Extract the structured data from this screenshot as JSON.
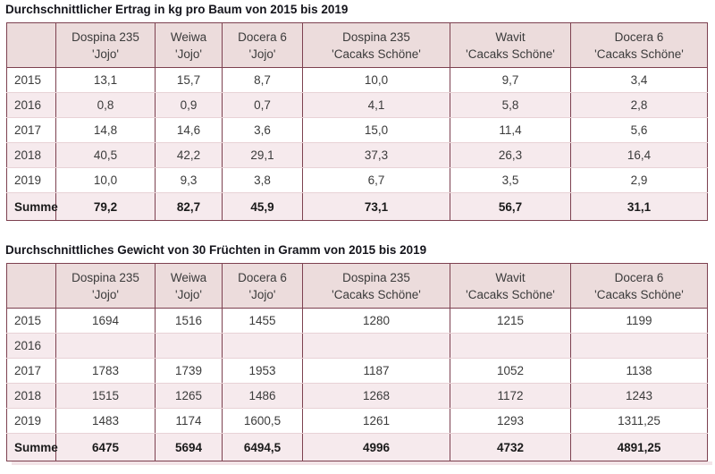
{
  "colors": {
    "border": "#7d4150",
    "header_bg": "#ecdcdc",
    "alt_row_bg": "#f6eaed",
    "separator": "#e8d2d6",
    "title_color": "#15151c",
    "text": "#3b3b3b",
    "sum_text": "#1a1a1a"
  },
  "chart_data": [
    {
      "type": "table",
      "title": "Durchschnittlicher Ertrag in kg pro Baum von 2015 bis 2019",
      "columns": [
        {
          "name": "",
          "variety": ""
        },
        {
          "name": "Dospina 235",
          "variety": "'Jojo'"
        },
        {
          "name": "Weiwa",
          "variety": "'Jojo'"
        },
        {
          "name": "Docera 6",
          "variety": "'Jojo'"
        },
        {
          "name": "Dospina 235",
          "variety": "'Cacaks Schöne'"
        },
        {
          "name": "Wavit",
          "variety": "'Cacaks Schöne'"
        },
        {
          "name": "Docera 6",
          "variety": "'Cacaks Schöne'"
        }
      ],
      "rows": [
        {
          "label": "2015",
          "values": [
            "13,1",
            "15,7",
            "8,7",
            "10,0",
            "9,7",
            "3,4"
          ]
        },
        {
          "label": "2016",
          "values": [
            "0,8",
            "0,9",
            "0,7",
            "4,1",
            "5,8",
            "2,8"
          ]
        },
        {
          "label": "2017",
          "values": [
            "14,8",
            "14,6",
            "3,6",
            "15,0",
            "11,4",
            "5,6"
          ]
        },
        {
          "label": "2018",
          "values": [
            "40,5",
            "42,2",
            "29,1",
            "37,3",
            "26,3",
            "16,4"
          ]
        },
        {
          "label": "2019",
          "values": [
            "10,0",
            "9,3",
            "3,8",
            "6,7",
            "3,5",
            "2,9"
          ]
        },
        {
          "label": "Summe",
          "values": [
            "79,2",
            "82,7",
            "45,9",
            "73,1",
            "56,7",
            "31,1"
          ]
        }
      ]
    },
    {
      "type": "table",
      "title": "Durchschnittliches Gewicht von 30 Früchten in Gramm von 2015 bis 2019",
      "columns": [
        {
          "name": "",
          "variety": ""
        },
        {
          "name": "Dospina 235",
          "variety": "'Jojo'"
        },
        {
          "name": "Weiwa",
          "variety": "'Jojo'"
        },
        {
          "name": "Docera 6",
          "variety": "'Jojo'"
        },
        {
          "name": "Dospina 235",
          "variety": "'Cacaks Schöne'"
        },
        {
          "name": "Wavit",
          "variety": "'Cacaks Schöne'"
        },
        {
          "name": "Docera 6",
          "variety": "'Cacaks Schöne'"
        }
      ],
      "rows": [
        {
          "label": "2015",
          "values": [
            "1694",
            "1516",
            "1455",
            "1280",
            "1215",
            "1199"
          ]
        },
        {
          "label": "2016",
          "values": [
            "",
            "",
            "",
            "",
            "",
            ""
          ]
        },
        {
          "label": "2017",
          "values": [
            "1783",
            "1739",
            "1953",
            "1187",
            "1052",
            "1138"
          ]
        },
        {
          "label": "2018",
          "values": [
            "1515",
            "1265",
            "1486",
            "1268",
            "1172",
            "1243"
          ]
        },
        {
          "label": "2019",
          "values": [
            "1483",
            "1174",
            "1600,5",
            "1261",
            "1293",
            "1311,25"
          ]
        },
        {
          "label": "Summe",
          "values": [
            "6475",
            "5694",
            "6494,5",
            "4996",
            "4732",
            "4891,25"
          ]
        }
      ]
    }
  ]
}
